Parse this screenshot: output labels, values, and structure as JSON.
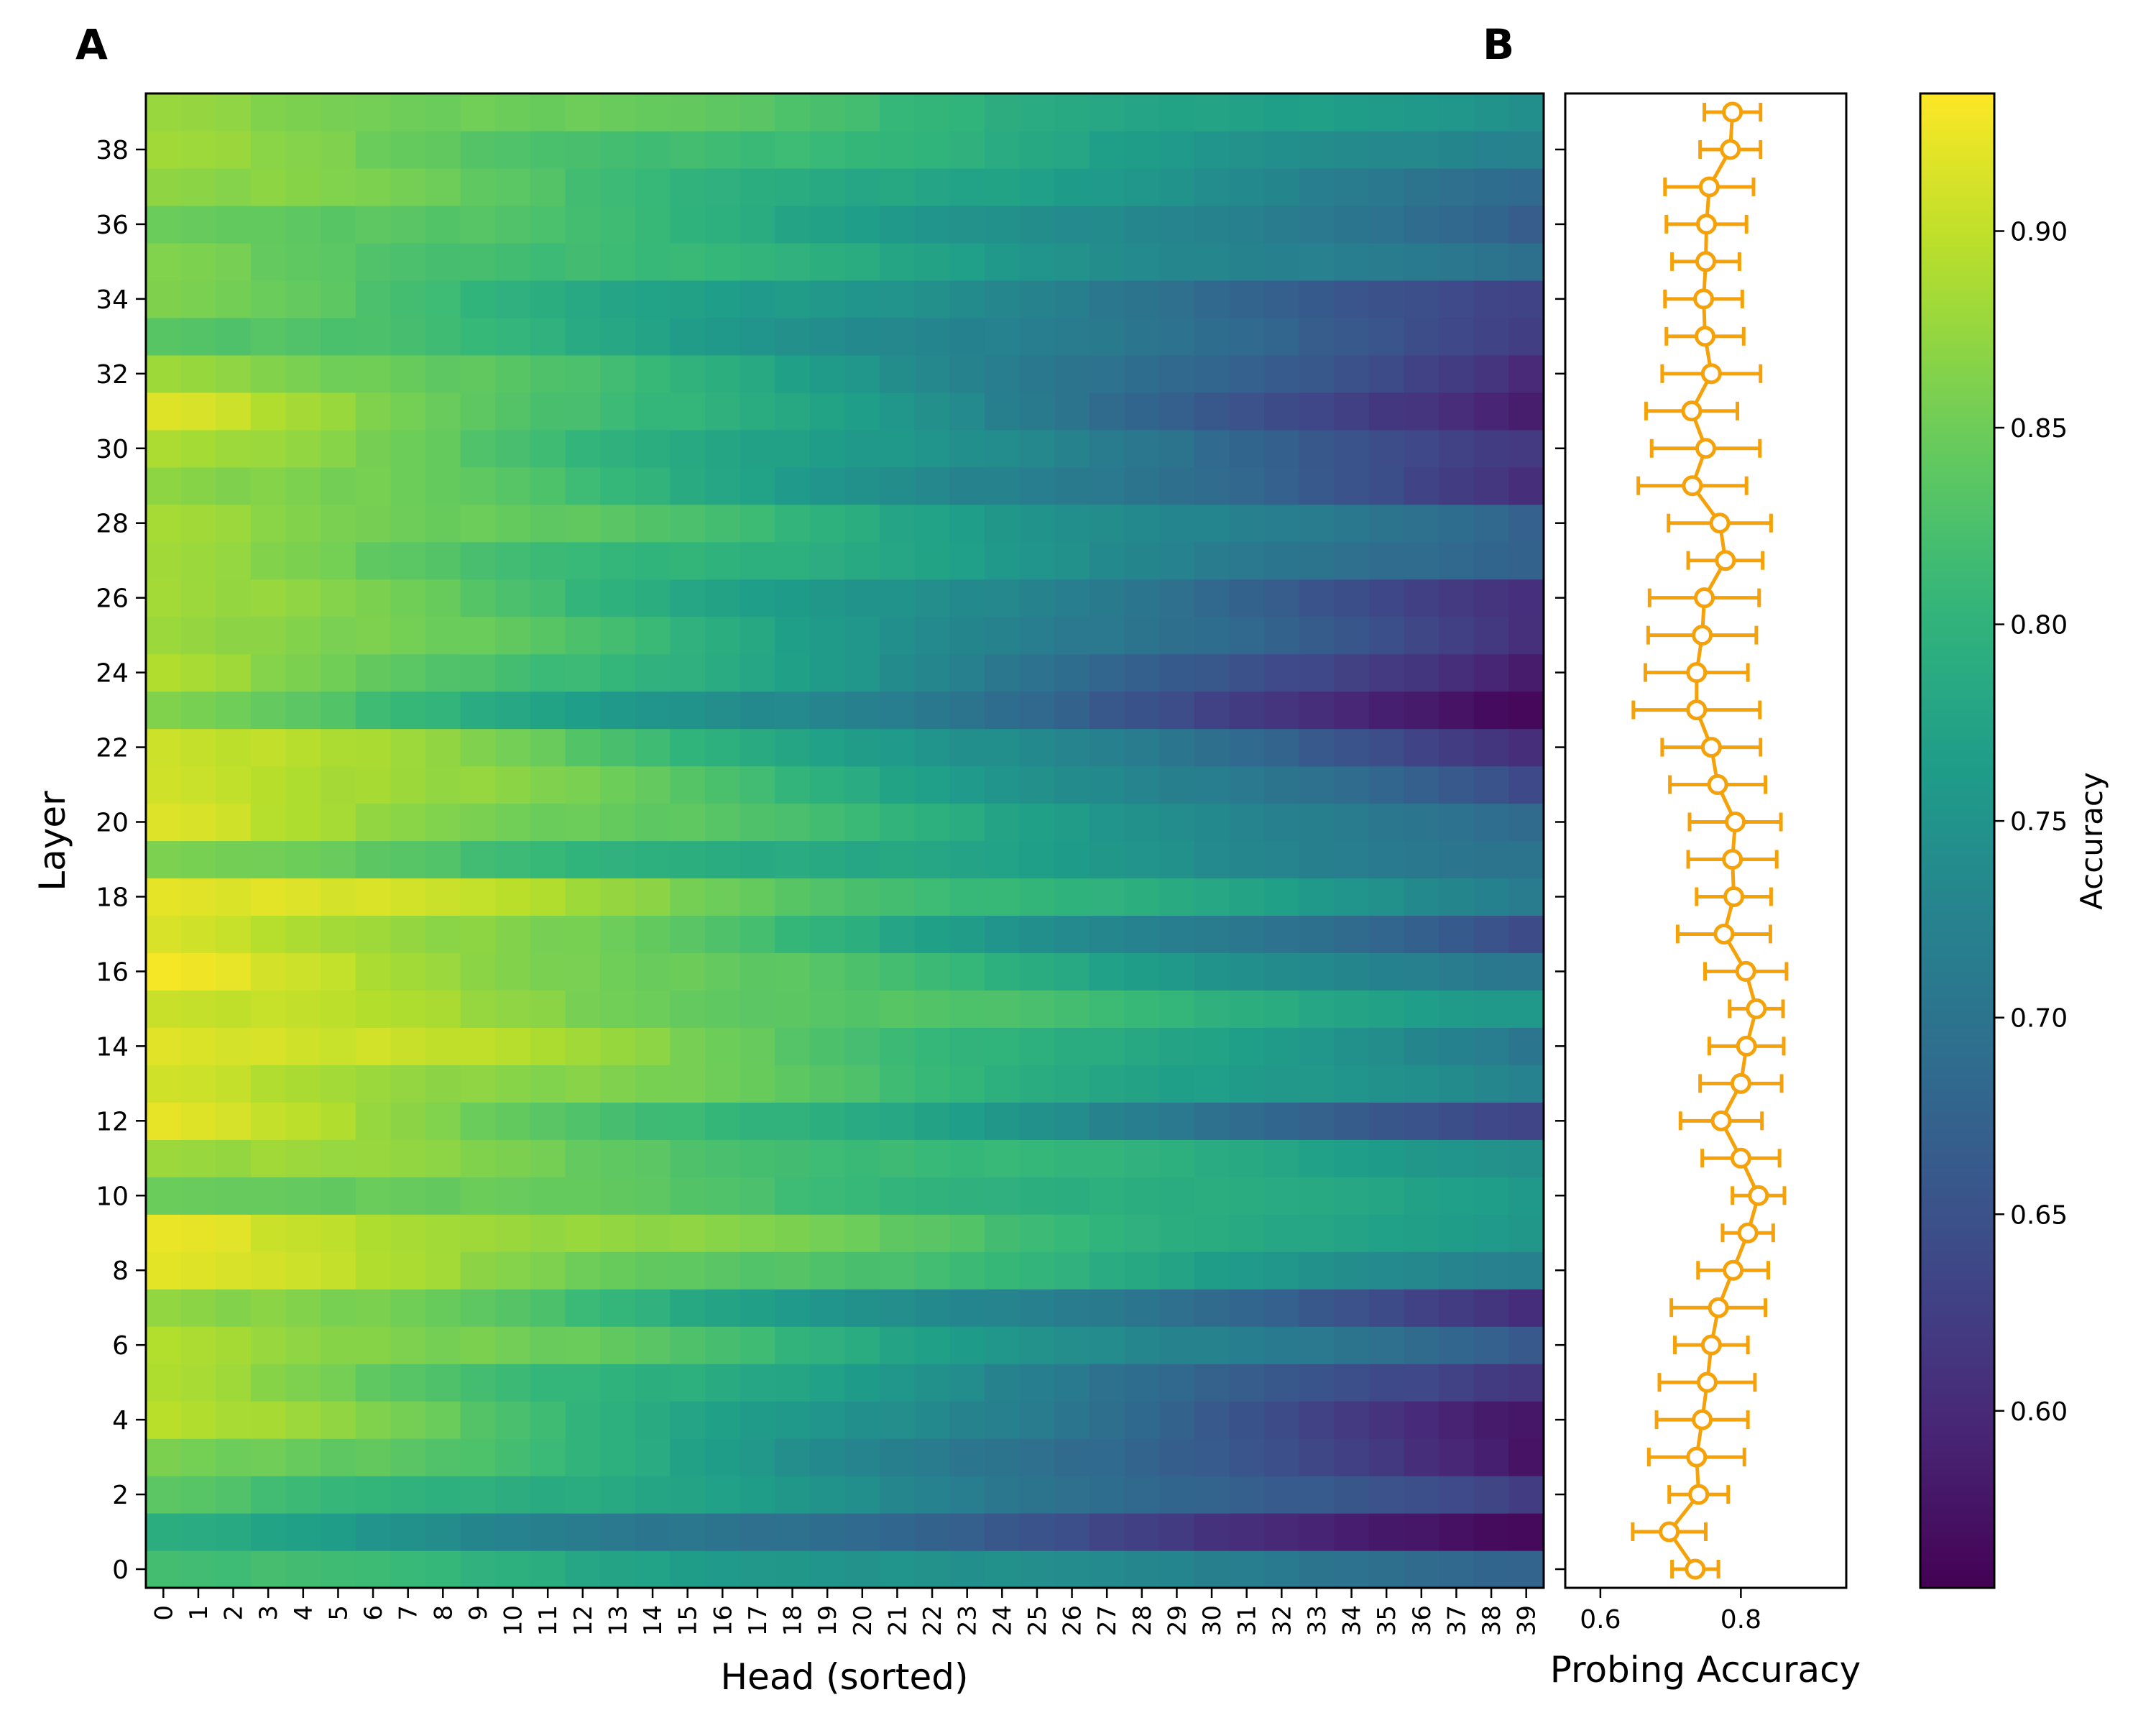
{
  "chart_data": [
    {
      "type": "heatmap",
      "panel_label": "A",
      "xlabel": "Head (sorted)",
      "ylabel": "Layer",
      "x_ticks": [
        "0",
        "1",
        "2",
        "3",
        "4",
        "5",
        "6",
        "7",
        "8",
        "9",
        "10",
        "11",
        "12",
        "13",
        "14",
        "15",
        "16",
        "17",
        "18",
        "19",
        "20",
        "21",
        "22",
        "23",
        "24",
        "25",
        "26",
        "27",
        "28",
        "29",
        "30",
        "31",
        "32",
        "33",
        "34",
        "35",
        "36",
        "37",
        "38",
        "39"
      ],
      "y_ticks": [
        "0",
        "2",
        "4",
        "6",
        "8",
        "10",
        "12",
        "14",
        "16",
        "18",
        "20",
        "22",
        "24",
        "26",
        "28",
        "30",
        "32",
        "34",
        "36",
        "38"
      ],
      "n_heads": 40,
      "n_layers": 40,
      "first_head_accuracy_by_layer": [
        0.82,
        0.78,
        0.84,
        0.87,
        0.89,
        0.88,
        0.9,
        0.88,
        0.91,
        0.92,
        0.86,
        0.88,
        0.91,
        0.91,
        0.93,
        0.9,
        0.92,
        0.92,
        0.93,
        0.85,
        0.91,
        0.92,
        0.91,
        0.85,
        0.89,
        0.89,
        0.88,
        0.87,
        0.89,
        0.88,
        0.88,
        0.91,
        0.89,
        0.84,
        0.85,
        0.86,
        0.86,
        0.87,
        0.87,
        0.88
      ],
      "last_head_accuracy_by_layer": [
        0.68,
        0.56,
        0.62,
        0.58,
        0.58,
        0.61,
        0.66,
        0.61,
        0.72,
        0.75,
        0.76,
        0.75,
        0.63,
        0.72,
        0.71,
        0.76,
        0.7,
        0.64,
        0.72,
        0.7,
        0.68,
        0.64,
        0.61,
        0.56,
        0.58,
        0.61,
        0.61,
        0.67,
        0.67,
        0.61,
        0.62,
        0.58,
        0.6,
        0.63,
        0.63,
        0.69,
        0.67,
        0.69,
        0.72,
        0.74
      ],
      "mean_accuracy_by_layer": [
        0.735,
        0.698,
        0.74,
        0.737,
        0.745,
        0.752,
        0.758,
        0.768,
        0.789,
        0.81,
        0.825,
        0.8,
        0.772,
        0.8,
        0.808,
        0.822,
        0.807,
        0.776,
        0.79,
        0.788,
        0.792,
        0.767,
        0.758,
        0.737,
        0.737,
        0.745,
        0.748,
        0.778,
        0.77,
        0.731,
        0.75,
        0.73,
        0.758,
        0.749,
        0.747,
        0.75,
        0.751,
        0.755,
        0.785,
        0.788
      ],
      "colorbar": {
        "label": "Accuracy",
        "range": [
          0.555,
          0.935
        ],
        "ticks": [
          "0.60",
          "0.65",
          "0.70",
          "0.75",
          "0.80",
          "0.85",
          "0.90"
        ],
        "colormap": "viridis"
      }
    },
    {
      "type": "scatter",
      "panel_label": "B",
      "xlabel": "Probing Accuracy",
      "x_ticks": [
        "0.6",
        "0.8"
      ],
      "xlim": [
        0.55,
        0.95
      ],
      "ylim": [
        -0.5,
        39.5
      ],
      "series_color": "#f5a20a",
      "layers": [
        0,
        1,
        2,
        3,
        4,
        5,
        6,
        7,
        8,
        9,
        10,
        11,
        12,
        13,
        14,
        15,
        16,
        17,
        18,
        19,
        20,
        21,
        22,
        23,
        24,
        25,
        26,
        27,
        28,
        29,
        30,
        31,
        32,
        33,
        34,
        35,
        36,
        37,
        38,
        39
      ],
      "mean": [
        0.735,
        0.698,
        0.74,
        0.737,
        0.745,
        0.752,
        0.758,
        0.768,
        0.789,
        0.81,
        0.825,
        0.8,
        0.772,
        0.8,
        0.808,
        0.822,
        0.807,
        0.776,
        0.79,
        0.788,
        0.792,
        0.767,
        0.758,
        0.737,
        0.737,
        0.745,
        0.748,
        0.778,
        0.77,
        0.731,
        0.75,
        0.73,
        0.758,
        0.749,
        0.747,
        0.75,
        0.751,
        0.755,
        0.785,
        0.788
      ],
      "error": [
        0.033,
        0.052,
        0.042,
        0.068,
        0.065,
        0.068,
        0.052,
        0.067,
        0.05,
        0.036,
        0.037,
        0.055,
        0.058,
        0.058,
        0.053,
        0.038,
        0.058,
        0.066,
        0.053,
        0.063,
        0.065,
        0.068,
        0.07,
        0.09,
        0.073,
        0.077,
        0.078,
        0.053,
        0.073,
        0.077,
        0.077,
        0.065,
        0.07,
        0.055,
        0.055,
        0.048,
        0.057,
        0.063,
        0.043,
        0.04
      ]
    }
  ]
}
